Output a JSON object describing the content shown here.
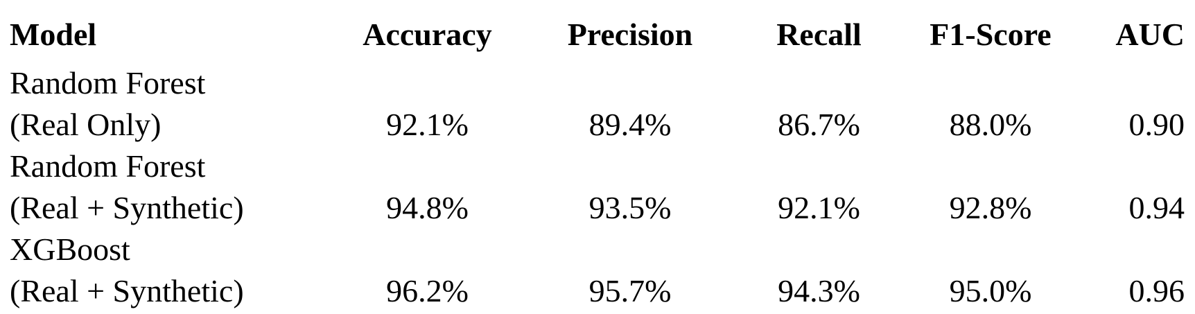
{
  "table": {
    "headers": {
      "model": "Model",
      "accuracy": "Accuracy",
      "precision": "Precision",
      "recall": "Recall",
      "f1": "F1-Score",
      "auc": "AUC"
    },
    "rows": [
      {
        "model_line1": "Random Forest",
        "model_line2": "(Real Only)",
        "accuracy": "92.1%",
        "precision": "89.4%",
        "recall": "86.7%",
        "f1": "88.0%",
        "auc": "0.90"
      },
      {
        "model_line1": "Random Forest",
        "model_line2": "(Real + Synthetic)",
        "accuracy": "94.8%",
        "precision": "93.5%",
        "recall": "92.1%",
        "f1": "92.8%",
        "auc": "0.94"
      },
      {
        "model_line1": "XGBoost",
        "model_line2": "(Real + Synthetic)",
        "accuracy": "96.2%",
        "precision": "95.7%",
        "recall": "94.3%",
        "f1": "95.0%",
        "auc": "0.96"
      }
    ]
  }
}
